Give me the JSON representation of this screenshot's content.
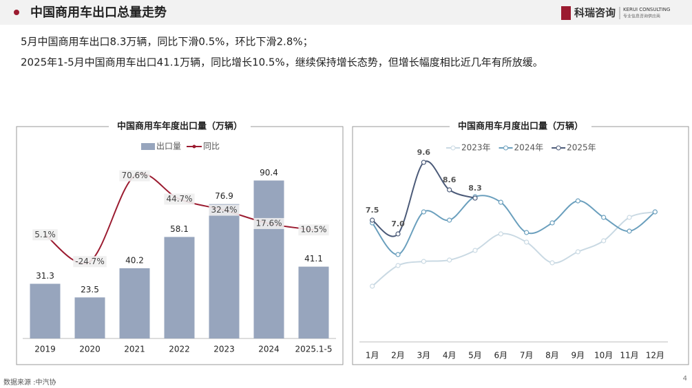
{
  "header": {
    "title": "中国商用车出口总量走势",
    "logo": "科瑞咨询",
    "logo_en": "KERUI CONSULTING",
    "logo_sub": "专业信息咨询供应商"
  },
  "summary": [
    "5月中国商用车出口8.3万辆，同比下滑0.5%，环比下滑2.8%；",
    "2025年1-5月中国商用车出口41.1万辆，同比增长10.5%，继续保持增长态势，但增长幅度相比近几年有所放缓。"
  ],
  "source": "数据来源 :中汽协",
  "page_number": "4",
  "chart_data": [
    {
      "type": "bar",
      "title": "中国商用车年度出口量（万辆）",
      "categories": [
        "2019",
        "2020",
        "2021",
        "2022",
        "2023",
        "2024",
        "2025.1-5"
      ],
      "ylim": [
        0,
        100
      ],
      "y2lim": [
        -110,
        84
      ],
      "series": [
        {
          "name": "出口量",
          "color": "#97a5bd",
          "values": [
            31.3,
            23.5,
            40.2,
            58.1,
            76.9,
            90.4,
            41.1
          ]
        },
        {
          "name": "同比",
          "color": "#9b1b30",
          "axis": "y2",
          "type": "line",
          "values": [
            5.1,
            -24.7,
            70.6,
            44.7,
            32.4,
            17.6,
            10.5
          ],
          "value_labels": [
            "5.1%",
            "-24.7%",
            "70.6%",
            "44.7%",
            "32.4%",
            "17.6%",
            "10.5%"
          ]
        }
      ]
    },
    {
      "type": "line",
      "title": "中国商用车月度出口量（万辆）",
      "categories": [
        "1月",
        "2月",
        "3月",
        "4月",
        "5月",
        "6月",
        "7月",
        "8月",
        "9月",
        "10月",
        "11月",
        "12月"
      ],
      "ylim": [
        3,
        10.5
      ],
      "series": [
        {
          "name": "2023年",
          "color": "#c9d9e3",
          "values": [
            5.1,
            5.85,
            6.0,
            6.05,
            6.4,
            7.0,
            6.7,
            5.95,
            6.35,
            6.75,
            7.6,
            7.8
          ]
        },
        {
          "name": "2024年",
          "color": "#6a9fbd",
          "values": [
            7.4,
            6.25,
            7.8,
            7.5,
            8.35,
            8.15,
            7.05,
            7.4,
            8.2,
            7.6,
            7.1,
            7.8
          ]
        },
        {
          "name": "2025年",
          "color": "#4b5a78",
          "values": [
            7.5,
            7.0,
            9.6,
            8.6,
            8.3,
            null,
            null,
            null,
            null,
            null,
            null,
            null
          ],
          "value_labels": [
            "7.5",
            "7.0",
            "9.6",
            "8.6",
            "8.3",
            null,
            null,
            null,
            null,
            null,
            null,
            null
          ]
        }
      ]
    }
  ]
}
